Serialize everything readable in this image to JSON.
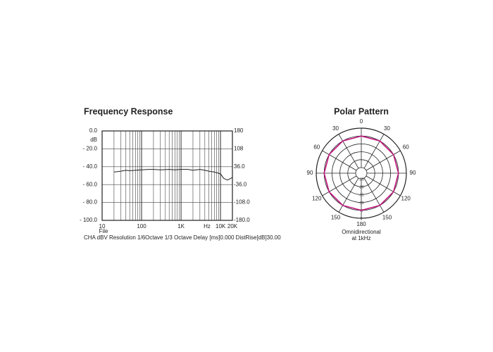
{
  "chart_data": [
    {
      "type": "line",
      "title": "Frequency Response",
      "ylabel": "dB",
      "xlabel": "Hz",
      "x_extra_label": "File",
      "caption": "CHA dBV Resolution 1/6Octave 1/3 Octave Delay [ms]0.000 DistRise[dB]30.00",
      "xscale": "log",
      "xlim": [
        10,
        20000
      ],
      "xticks": [
        10,
        100,
        {
          "value": 1000,
          "label": "1K"
        },
        {
          "value": 10000,
          "label": "10K"
        },
        {
          "value": 20000,
          "label": "20K"
        }
      ],
      "ylim": [
        -100,
        0
      ],
      "yticks": [
        {
          "value": 0,
          "label": "0.0"
        },
        {
          "value": -20,
          "label": "- 20.0"
        },
        {
          "value": -40,
          "label": "- 40.0"
        },
        {
          "value": -60,
          "label": "- 60.0"
        },
        {
          "value": -80,
          "label": "- 80.0"
        },
        {
          "value": -100,
          "label": "- 100.0"
        }
      ],
      "y2lim": [
        -180,
        180
      ],
      "y2ticks": [
        180,
        108,
        {
          "value": 36,
          "label": "36.0"
        },
        {
          "value": -36,
          "label": "-36.0"
        },
        {
          "value": -108,
          "label": "-108.0"
        },
        {
          "value": -180,
          "label": "-180.0"
        }
      ],
      "grid": true,
      "series": [
        {
          "color": "#222222",
          "x": [
            20,
            30,
            40,
            50,
            70,
            100,
            150,
            200,
            300,
            500,
            700,
            1000,
            1500,
            2000,
            3000,
            4000,
            5000,
            7000,
            10000,
            12000,
            15000,
            20000
          ],
          "values": [
            -46,
            -45,
            -44,
            -44.5,
            -44,
            -43.5,
            -43,
            -43,
            -43.5,
            -43,
            -43.5,
            -43,
            -43,
            -44,
            -43,
            -44,
            -45,
            -46,
            -48,
            -53,
            -55,
            -52
          ]
        }
      ]
    },
    {
      "type": "polar",
      "title": "Polar Pattern",
      "subtitle_lines": [
        "Omnidirectional",
        "at 1kHz"
      ],
      "rlim": [
        -25,
        0
      ],
      "rticks": [
        -25,
        -20,
        -15,
        -10,
        -5,
        0
      ],
      "thetaticks": [
        0,
        30,
        60,
        90,
        120,
        150,
        180,
        {
          "value": 210,
          "label": "150"
        },
        {
          "value": 240,
          "label": "120"
        },
        {
          "value": 270,
          "label": "90"
        },
        {
          "value": 300,
          "label": "60"
        },
        {
          "value": 330,
          "label": "30"
        }
      ],
      "series": [
        {
          "color": "#c2187e",
          "theta": [
            0,
            30,
            60,
            90,
            120,
            150,
            180,
            210,
            240,
            270,
            300,
            330
          ],
          "values": [
            -5,
            -5,
            -5,
            -5,
            -5,
            -5,
            -5,
            -5,
            -5,
            -5,
            -5,
            -5
          ]
        }
      ]
    }
  ]
}
